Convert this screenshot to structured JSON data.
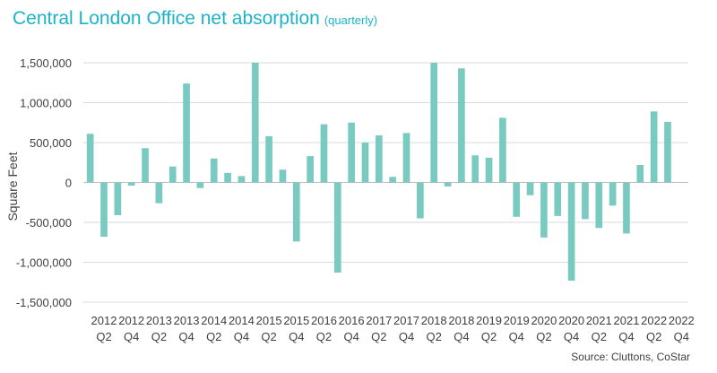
{
  "chart_data": {
    "type": "bar",
    "title": "Central London Office net absorption",
    "subtitle": "(quarterly)",
    "xlabel": "",
    "ylabel": "Square Feet",
    "ylim": [
      -1500000,
      1500000
    ],
    "yticks": [
      1500000,
      1000000,
      500000,
      0,
      -500000,
      -1000000,
      -1500000
    ],
    "ytick_labels": [
      "1,500,000",
      "1,000,000",
      "500,000",
      "0",
      "-500,000",
      "-1,000,000",
      "-1,500,000"
    ],
    "grid": true,
    "bar_color": "#79cbc1",
    "categories": [
      "2012 Q1",
      "2012 Q2",
      "2012 Q3",
      "2012 Q4",
      "2013 Q1",
      "2013 Q2",
      "2013 Q3",
      "2013 Q4",
      "2014 Q1",
      "2014 Q2",
      "2014 Q3",
      "2014 Q4",
      "2015 Q1",
      "2015 Q2",
      "2015 Q3",
      "2015 Q4",
      "2016 Q1",
      "2016 Q2",
      "2016 Q3",
      "2016 Q4",
      "2017 Q1",
      "2017 Q2",
      "2017 Q3",
      "2017 Q4",
      "2018 Q1",
      "2018 Q2",
      "2018 Q3",
      "2018 Q4",
      "2019 Q1",
      "2019 Q2",
      "2019 Q3",
      "2019 Q4",
      "2020 Q1",
      "2020 Q2",
      "2020 Q3",
      "2020 Q4",
      "2021 Q1",
      "2021 Q2",
      "2021 Q3",
      "2021 Q4",
      "2022 Q1",
      "2022 Q2",
      "2022 Q3",
      "2022 Q4"
    ],
    "values": [
      610000,
      -680000,
      -410000,
      -40000,
      430000,
      -260000,
      200000,
      1240000,
      -70000,
      300000,
      120000,
      80000,
      1500000,
      580000,
      160000,
      -740000,
      330000,
      730000,
      -1130000,
      750000,
      500000,
      590000,
      70000,
      620000,
      -450000,
      1500000,
      -50000,
      1430000,
      340000,
      310000,
      810000,
      -430000,
      -160000,
      -690000,
      -420000,
      -1230000,
      -460000,
      -570000,
      -290000,
      -640000,
      220000,
      890000,
      760000,
      0
    ],
    "tick_labels": [
      {
        "year": "2012",
        "q": "Q2"
      },
      {
        "year": "2012",
        "q": "Q4"
      },
      {
        "year": "2013",
        "q": "Q2"
      },
      {
        "year": "2013",
        "q": "Q4"
      },
      {
        "year": "2014",
        "q": "Q2"
      },
      {
        "year": "2014",
        "q": "Q4"
      },
      {
        "year": "2015",
        "q": "Q2"
      },
      {
        "year": "2015",
        "q": "Q4"
      },
      {
        "year": "2016",
        "q": "Q2"
      },
      {
        "year": "2016",
        "q": "Q4"
      },
      {
        "year": "2017",
        "q": "Q2"
      },
      {
        "year": "2017",
        "q": "Q4"
      },
      {
        "year": "2018",
        "q": "Q2"
      },
      {
        "year": "2018",
        "q": "Q4"
      },
      {
        "year": "2019",
        "q": "Q2"
      },
      {
        "year": "2019",
        "q": "Q4"
      },
      {
        "year": "2020",
        "q": "Q2"
      },
      {
        "year": "2020",
        "q": "Q4"
      },
      {
        "year": "2021",
        "q": "Q2"
      },
      {
        "year": "2021",
        "q": "Q4"
      },
      {
        "year": "2022",
        "q": "Q2"
      },
      {
        "year": "2022",
        "q": "Q4"
      }
    ],
    "source": "Source: Cluttons, CoStar"
  }
}
